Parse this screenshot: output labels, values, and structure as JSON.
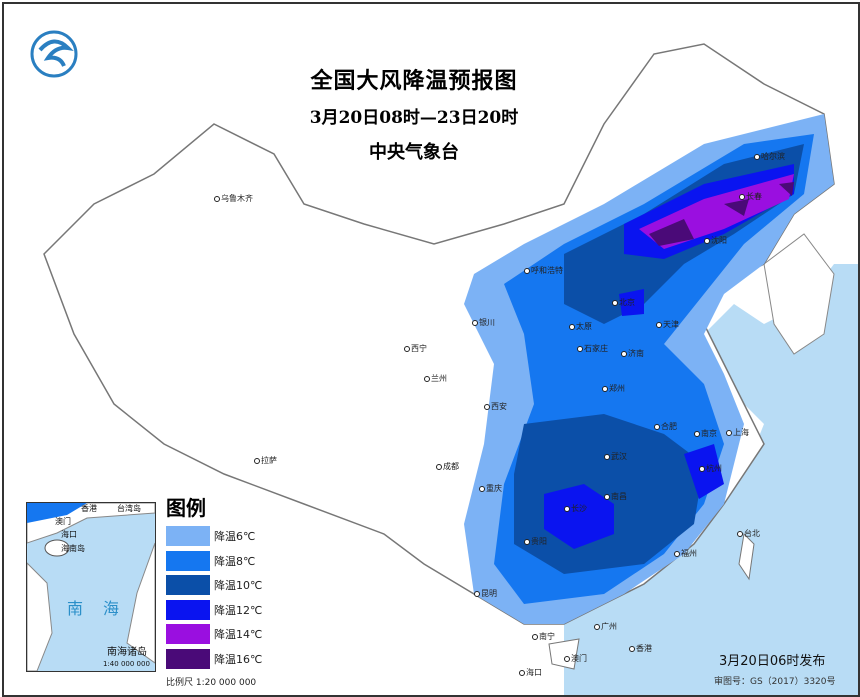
{
  "title": "全国大风降温预报图",
  "period": "3月20日08时—23日20时",
  "issuer": "中央气象台",
  "legend": {
    "title": "图例",
    "items": [
      {
        "label": "降温6℃",
        "color": "#7cb2f5"
      },
      {
        "label": "降温8℃",
        "color": "#1577f0"
      },
      {
        "label": "降温10℃",
        "color": "#0b4fa8"
      },
      {
        "label": "降温12℃",
        "color": "#0a14f0"
      },
      {
        "label": "降温14℃",
        "color": "#9a0fe0"
      },
      {
        "label": "降温16℃",
        "color": "#4a0a78"
      }
    ],
    "scale": "比例尺   1:20 000 000"
  },
  "inset": {
    "sea": "南海",
    "title": "南海诸岛",
    "scale": "1:40 000 000",
    "labels": [
      "香港",
      "澳门",
      "台湾岛",
      "海口",
      "海南岛"
    ]
  },
  "cities": [
    "乌鲁木齐",
    "拉萨",
    "西宁",
    "兰州",
    "银川",
    "西安",
    "成都",
    "重庆",
    "昆明",
    "贵阳",
    "南宁",
    "广州",
    "香港",
    "澳门",
    "海口",
    "长沙",
    "南昌",
    "武汉",
    "郑州",
    "合肥",
    "南京",
    "上海",
    "杭州",
    "福州",
    "台北",
    "济南",
    "石家庄",
    "太原",
    "北京",
    "天津",
    "呼和浩特",
    "沈阳",
    "长春",
    "哈尔滨"
  ],
  "publish": "3月20日06时发布",
  "review_no": "审图号：GS（2017）3320号",
  "colors": {
    "sea": "#b8dcf5",
    "land": "#ffffff",
    "border": "#777777"
  },
  "logo_text": "气"
}
